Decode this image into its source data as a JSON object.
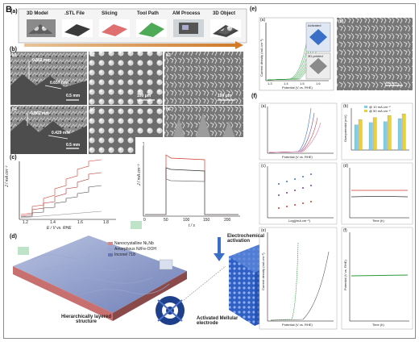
{
  "figure_label": "B",
  "panel_a": {
    "label": "(a)",
    "steps": [
      "3D Model",
      ".STL File",
      "Slicing",
      "Tool Path",
      "AM Process",
      "3D Object"
    ]
  },
  "panel_b": {
    "label": "(b)",
    "sub_labels": [
      "b1",
      "b2",
      "b3",
      "b4",
      "b5",
      "b6"
    ],
    "measure_1a": "0.802 mm",
    "measure_1b": "0.657 mm",
    "measure_2a": "0.802 mm",
    "measure_2b": "0.429 mm",
    "scale_mm": "0.5 mm",
    "scale_um": "100 μm"
  },
  "panel_c": {
    "label": "(c)",
    "left_ylabel": "J / mA cm⁻²",
    "left_xlabel": "E / V vs. RHE",
    "left_xticks": [
      "1.2",
      "1.4",
      "1.6",
      "1.8"
    ],
    "right_ylabel": "J / mA cm⁻²",
    "right_xlabel": "t / s",
    "right_xticks": [
      "0",
      "50",
      "100",
      "150",
      "200"
    ]
  },
  "panel_d": {
    "label": "(d)",
    "legend": [
      "Nanocrystalline Ni₃Nb",
      "Amorphous Ni/Fe-OOH",
      "Inconel 718"
    ],
    "step_label": "Electrochemical activation",
    "left_caption": "Hierarchically layered structure",
    "right_caption": "Activated Mellular electrode"
  },
  "panel_e": {
    "label": "(e)",
    "sub_a": "(a)",
    "sub_b": "(b)",
    "ylabel": "Current density (mA cm⁻²)",
    "xlabel": "Potential (V vs. RHE)",
    "xticks": [
      "1.3",
      "1.4",
      "1.5",
      "1.6"
    ],
    "inset_top": "Activated",
    "inset_bottom": "3D-printed",
    "scale": "200 nm"
  },
  "panel_f": {
    "label": "(f)",
    "sub": [
      "(a)",
      "(b)",
      "(c)",
      "(d)",
      "(e)",
      "(f)"
    ],
    "bar_legend": [
      "@ 10 mA cm⁻²",
      "@ 50 mA cm⁻²"
    ],
    "bar_categories": [
      "Activated Mellular",
      "As-printed Mellular",
      "Activated planar",
      "As-printed planar"
    ],
    "axis_potential": "Potential (V vs. RHE)",
    "axis_time": "Time (h)",
    "axis_overpotential": "Overpotential (mV)",
    "axis_current": "Current density (mA cm⁻²)",
    "axis_log": "Log(j/mA cm⁻²)"
  },
  "colors": {
    "red": "#d23a2e",
    "green": "#2a9a3a",
    "blue": "#3a6fc8",
    "purple": "#7a3aa8",
    "yellow": "#e8d23a",
    "cyan": "#7ed0e8",
    "mesh_blue": "#2f5fc4"
  },
  "chart_data": [
    {
      "type": "bar",
      "categories": [
        "Activated Mellular",
        "As-printed Mellular",
        "Activated planar",
        "As-printed planar"
      ],
      "series": [
        {
          "name": "@ 10 mA cm⁻²",
          "values": [
            240,
            262,
            270,
            300
          ]
        },
        {
          "name": "@ 50 mA cm⁻²",
          "values": [
            290,
            310,
            330,
            345
          ]
        }
      ],
      "ylabel": "Overpotential (mV)",
      "ylim": [
        0,
        400
      ]
    }
  ]
}
